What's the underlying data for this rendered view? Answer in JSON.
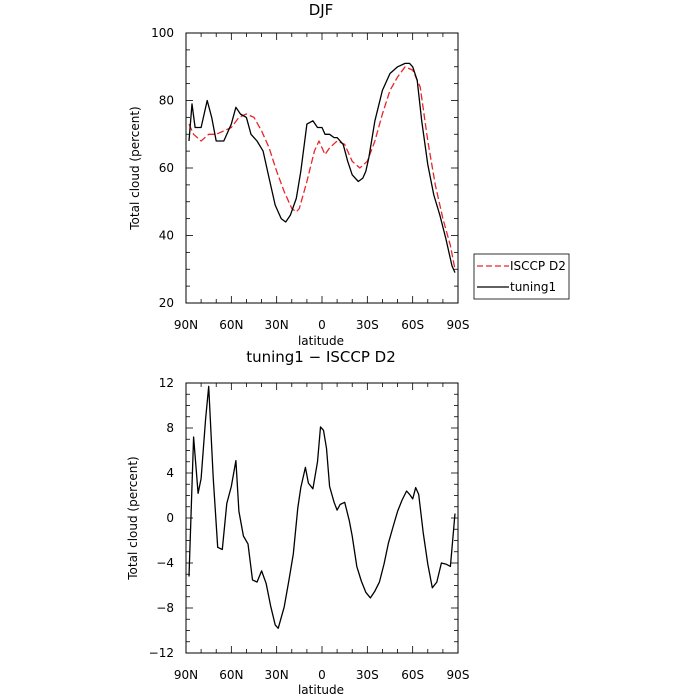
{
  "chart_data": [
    {
      "type": "line",
      "title": "DJF",
      "xlabel": "latitude",
      "ylabel": "Total cloud (percent)",
      "xlim": [
        90,
        -90
      ],
      "ylim": [
        20,
        100
      ],
      "x_ticks": [
        90,
        60,
        30,
        0,
        -30,
        -60,
        -90
      ],
      "x_tick_labels": [
        "90N",
        "60N",
        "30N",
        "0",
        "30S",
        "60S",
        "90S"
      ],
      "y_ticks": [
        20,
        40,
        60,
        80,
        100
      ],
      "y_tick_labels": [
        "20",
        "40",
        "60",
        "80",
        "100"
      ],
      "legend_position": "right",
      "series": [
        {
          "name": "ISCCP D2",
          "color": "#e8262a",
          "dash": "dashed",
          "x": [
            88,
            85,
            80,
            75,
            70,
            65,
            60,
            55,
            50,
            45,
            40,
            35,
            30,
            25,
            20,
            17,
            15,
            10,
            5,
            2,
            0,
            -2,
            -5,
            -10,
            -15,
            -20,
            -25,
            -30,
            -35,
            -40,
            -45,
            -50,
            -55,
            -60,
            -65,
            -70,
            -75,
            -80,
            -85,
            -88
          ],
          "y": [
            73,
            70,
            68,
            70,
            70,
            71,
            72,
            75,
            76,
            75,
            71,
            66,
            59,
            53,
            48,
            47,
            48,
            56,
            65,
            68,
            66,
            64,
            66,
            68,
            67,
            62,
            60,
            62,
            68,
            76,
            83,
            87,
            90,
            89,
            84,
            68,
            55,
            45,
            37,
            30
          ]
        },
        {
          "name": "tuning1",
          "color": "#000000",
          "dash": "solid",
          "x": [
            88,
            86,
            84,
            80,
            76,
            73,
            70,
            65,
            60,
            57,
            54,
            50,
            47,
            43,
            39,
            35,
            31,
            27,
            24,
            21,
            17,
            14,
            10,
            6,
            3,
            0,
            -2,
            -5,
            -8,
            -10,
            -14,
            -17,
            -20,
            -24,
            -27,
            -29,
            -31,
            -35,
            -40,
            -45,
            -50,
            -55,
            -58,
            -60,
            -63,
            -66,
            -70,
            -74,
            -78,
            -82,
            -86,
            -88
          ],
          "y": [
            68,
            79,
            72,
            72,
            80,
            75,
            68,
            68,
            73,
            78,
            76,
            75,
            70,
            68,
            65,
            57,
            49,
            45,
            44,
            46,
            51,
            59,
            73,
            74,
            72,
            72,
            70,
            70,
            69,
            69,
            67,
            62,
            58,
            56,
            57,
            59,
            63,
            74,
            83,
            88,
            90,
            91,
            91,
            90,
            86,
            74,
            61,
            52,
            46,
            39,
            31,
            29
          ]
        }
      ]
    },
    {
      "type": "line",
      "title": "tuning1 − ISCCP D2",
      "xlabel": "latitude",
      "ylabel": "Total cloud (percent)",
      "xlim": [
        90,
        -90
      ],
      "ylim": [
        -12,
        12
      ],
      "x_ticks": [
        90,
        60,
        30,
        0,
        -30,
        -60,
        -90
      ],
      "x_tick_labels": [
        "90N",
        "60N",
        "30N",
        "0",
        "30S",
        "60S",
        "90S"
      ],
      "y_ticks": [
        -12,
        -8,
        -4,
        0,
        4,
        8,
        12
      ],
      "y_tick_labels": [
        "−12",
        "−8",
        "−4",
        "0",
        "4",
        "8",
        "12"
      ],
      "series": [
        {
          "name": "",
          "color": "#000000",
          "dash": "solid",
          "x": [
            88,
            85,
            82,
            80,
            77,
            75,
            72,
            69,
            66,
            63,
            60,
            57,
            55,
            52,
            49,
            46,
            43,
            40,
            37,
            34,
            31,
            29,
            25,
            22,
            19,
            16,
            14,
            11,
            9,
            6,
            3,
            1,
            -1,
            -3,
            -5,
            -8,
            -10,
            -12,
            -15,
            -18,
            -20,
            -23,
            -26,
            -29,
            -32,
            -35,
            -38,
            -41,
            -44,
            -47,
            -50,
            -53,
            -56,
            -58,
            -60,
            -62,
            -64,
            -67,
            -70,
            -73,
            -76,
            -79,
            -82,
            -85,
            -88
          ],
          "y": [
            -5.2,
            7.2,
            2.2,
            3.5,
            8.8,
            11.7,
            3.6,
            -2.6,
            -2.8,
            1.3,
            2.8,
            5.1,
            0.6,
            -1.6,
            -2.3,
            -5.5,
            -5.7,
            -4.7,
            -5.8,
            -7.8,
            -9.5,
            -9.8,
            -7.9,
            -5.6,
            -3.2,
            0.9,
            2.7,
            4.5,
            3.1,
            2.6,
            5.0,
            8.1,
            7.8,
            6.2,
            2.8,
            1.4,
            0.7,
            1.2,
            1.4,
            -0.2,
            -1.6,
            -4.3,
            -5.6,
            -6.6,
            -7.1,
            -6.5,
            -5.7,
            -4.1,
            -2.2,
            -0.8,
            0.6,
            1.6,
            2.4,
            2.1,
            1.7,
            2.7,
            2.1,
            -1.3,
            -4.1,
            -6.2,
            -5.7,
            -4.0,
            -4.1,
            -4.3,
            0.4
          ]
        }
      ]
    }
  ]
}
